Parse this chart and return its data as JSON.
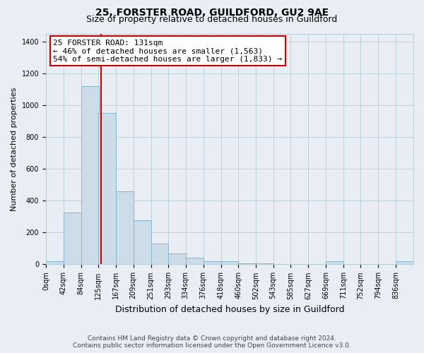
{
  "title1": "25, FORSTER ROAD, GUILDFORD, GU2 9AE",
  "title2": "Size of property relative to detached houses in Guildford",
  "xlabel": "Distribution of detached houses by size in Guildford",
  "ylabel": "Number of detached properties",
  "footnote1": "Contains HM Land Registry data © Crown copyright and database right 2024.",
  "footnote2": "Contains public sector information licensed under the Open Government Licence v3.0.",
  "annotation_line1": "25 FORSTER ROAD: 131sqm",
  "annotation_line2": "← 46% of detached houses are smaller (1,563)",
  "annotation_line3": "54% of semi-detached houses are larger (1,833) →",
  "bar_labels": [
    "0sqm",
    "42sqm",
    "84sqm",
    "125sqm",
    "167sqm",
    "209sqm",
    "251sqm",
    "293sqm",
    "334sqm",
    "376sqm",
    "418sqm",
    "460sqm",
    "502sqm",
    "543sqm",
    "585sqm",
    "627sqm",
    "669sqm",
    "711sqm",
    "752sqm",
    "794sqm",
    "836sqm"
  ],
  "bar_values": [
    20,
    325,
    1120,
    950,
    460,
    275,
    130,
    70,
    40,
    20,
    20,
    5,
    5,
    0,
    0,
    0,
    20,
    0,
    0,
    0,
    20
  ],
  "bar_color": "#ccdce8",
  "bar_edge_color": "#8ab4cc",
  "vline_color": "#cc0000",
  "vline_x": 131,
  "ylim": [
    0,
    1450
  ],
  "yticks": [
    0,
    200,
    400,
    600,
    800,
    1000,
    1200,
    1400
  ],
  "bg_color": "#e8eef4",
  "plot_bg_color": "#e8eef4",
  "grid_color": "#b8ccd8",
  "annotation_box_color": "white",
  "annotation_box_edge": "#cc0000",
  "title1_fontsize": 10,
  "title2_fontsize": 9,
  "xlabel_fontsize": 9,
  "ylabel_fontsize": 8,
  "tick_fontsize": 7,
  "annot_fontsize": 8,
  "footnote_fontsize": 6.5
}
